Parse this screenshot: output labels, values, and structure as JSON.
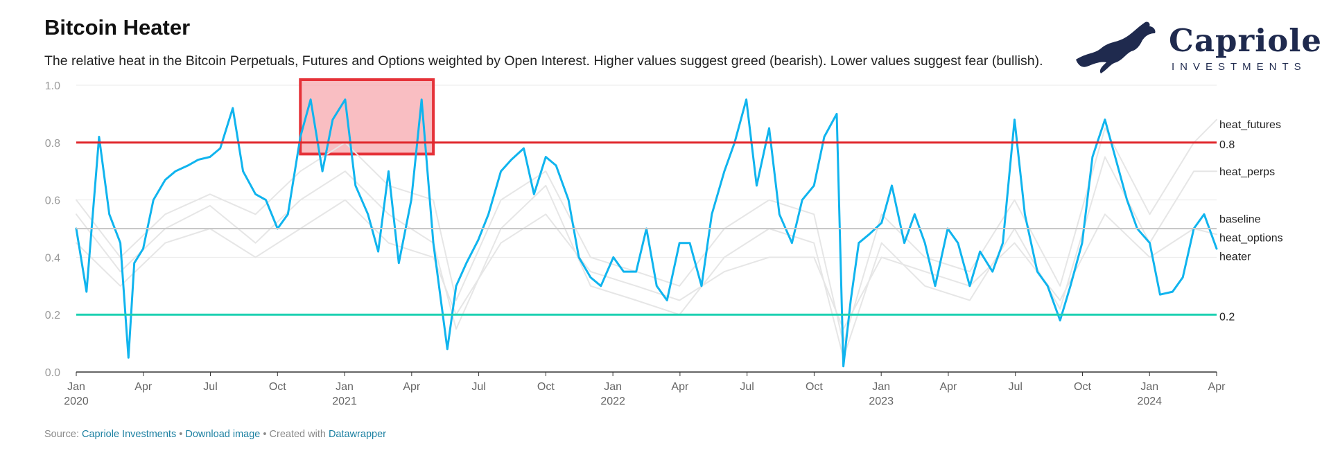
{
  "header": {
    "title": "Bitcoin Heater",
    "subtitle": "The relative heat in the Bitcoin Perpetuals, Futures and Options weighted by Open Interest. Higher values suggest greed (bearish). Lower values suggest fear (bullish)."
  },
  "logo": {
    "name": "Capriole",
    "tagline": "INVESTMENTS",
    "color": "#1f2a4e"
  },
  "footer": {
    "source_prefix": "Source:",
    "source_link": "Capriole Investments",
    "sep1": "•",
    "download_link": "Download image",
    "sep2": "•",
    "created_prefix": "Created with",
    "created_link": "Datawrapper"
  },
  "chart_data": {
    "type": "line",
    "x_range": [
      "2020-01-01",
      "2024-04-01"
    ],
    "ylim": [
      0,
      1
    ],
    "y_ticks": [
      "0.0",
      "0.2",
      "0.4",
      "0.6",
      "0.8",
      "1.0"
    ],
    "x_ticks": [
      {
        "month": "Jan",
        "year": "2020"
      },
      {
        "month": "Apr",
        "year": ""
      },
      {
        "month": "Jul",
        "year": ""
      },
      {
        "month": "Oct",
        "year": ""
      },
      {
        "month": "Jan",
        "year": "2021"
      },
      {
        "month": "Apr",
        "year": ""
      },
      {
        "month": "Jul",
        "year": ""
      },
      {
        "month": "Oct",
        "year": ""
      },
      {
        "month": "Jan",
        "year": "2022"
      },
      {
        "month": "Apr",
        "year": ""
      },
      {
        "month": "Jul",
        "year": ""
      },
      {
        "month": "Oct",
        "year": ""
      },
      {
        "month": "Jan",
        "year": "2023"
      },
      {
        "month": "Apr",
        "year": ""
      },
      {
        "month": "Jul",
        "year": ""
      },
      {
        "month": "Oct",
        "year": ""
      },
      {
        "month": "Jan",
        "year": "2024"
      },
      {
        "month": "Apr",
        "year": ""
      }
    ],
    "grid": true,
    "reference_lines": [
      {
        "label": "0.8",
        "value": 0.8,
        "color": "#e0262b"
      },
      {
        "label": "baseline",
        "value": 0.5,
        "color": "#c8c8c8"
      },
      {
        "label": "0.2",
        "value": 0.2,
        "color": "#1ed1b2"
      }
    ],
    "highlight": {
      "x_start": "2020-11-01",
      "x_end": "2021-05-01",
      "y_start": 0.76,
      "y_end": 1.0,
      "fill": "#f7a8ad",
      "stroke": "#e53138"
    },
    "series": [
      {
        "name": "heater",
        "color": "#10b4ee",
        "points": [
          [
            "2020-01-01",
            0.5
          ],
          [
            "2020-01-15",
            0.28
          ],
          [
            "2020-02-01",
            0.82
          ],
          [
            "2020-02-15",
            0.55
          ],
          [
            "2020-03-01",
            0.45
          ],
          [
            "2020-03-12",
            0.05
          ],
          [
            "2020-03-20",
            0.38
          ],
          [
            "2020-04-01",
            0.43
          ],
          [
            "2020-04-15",
            0.6
          ],
          [
            "2020-05-01",
            0.67
          ],
          [
            "2020-05-15",
            0.7
          ],
          [
            "2020-06-01",
            0.72
          ],
          [
            "2020-06-15",
            0.74
          ],
          [
            "2020-07-01",
            0.75
          ],
          [
            "2020-07-15",
            0.78
          ],
          [
            "2020-08-01",
            0.92
          ],
          [
            "2020-08-15",
            0.7
          ],
          [
            "2020-09-01",
            0.62
          ],
          [
            "2020-09-15",
            0.6
          ],
          [
            "2020-10-01",
            0.5
          ],
          [
            "2020-10-15",
            0.55
          ],
          [
            "2020-11-01",
            0.82
          ],
          [
            "2020-11-15",
            0.95
          ],
          [
            "2020-12-01",
            0.7
          ],
          [
            "2020-12-15",
            0.88
          ],
          [
            "2021-01-01",
            0.95
          ],
          [
            "2021-01-15",
            0.65
          ],
          [
            "2021-02-01",
            0.55
          ],
          [
            "2021-02-15",
            0.42
          ],
          [
            "2021-03-01",
            0.7
          ],
          [
            "2021-03-15",
            0.38
          ],
          [
            "2021-04-01",
            0.6
          ],
          [
            "2021-04-15",
            0.95
          ],
          [
            "2021-05-01",
            0.45
          ],
          [
            "2021-05-20",
            0.08
          ],
          [
            "2021-06-01",
            0.3
          ],
          [
            "2021-06-15",
            0.38
          ],
          [
            "2021-07-01",
            0.46
          ],
          [
            "2021-07-15",
            0.55
          ],
          [
            "2021-08-01",
            0.7
          ],
          [
            "2021-08-15",
            0.74
          ],
          [
            "2021-09-01",
            0.78
          ],
          [
            "2021-09-15",
            0.62
          ],
          [
            "2021-10-01",
            0.75
          ],
          [
            "2021-10-15",
            0.72
          ],
          [
            "2021-11-01",
            0.6
          ],
          [
            "2021-11-15",
            0.4
          ],
          [
            "2021-12-01",
            0.33
          ],
          [
            "2021-12-15",
            0.3
          ],
          [
            "2022-01-01",
            0.4
          ],
          [
            "2022-01-15",
            0.35
          ],
          [
            "2022-02-01",
            0.35
          ],
          [
            "2022-02-15",
            0.5
          ],
          [
            "2022-03-01",
            0.3
          ],
          [
            "2022-03-15",
            0.25
          ],
          [
            "2022-04-01",
            0.45
          ],
          [
            "2022-04-15",
            0.45
          ],
          [
            "2022-05-01",
            0.3
          ],
          [
            "2022-05-15",
            0.55
          ],
          [
            "2022-06-01",
            0.7
          ],
          [
            "2022-06-15",
            0.8
          ],
          [
            "2022-07-01",
            0.95
          ],
          [
            "2022-07-15",
            0.65
          ],
          [
            "2022-08-01",
            0.85
          ],
          [
            "2022-08-15",
            0.55
          ],
          [
            "2022-09-01",
            0.45
          ],
          [
            "2022-09-15",
            0.6
          ],
          [
            "2022-10-01",
            0.65
          ],
          [
            "2022-10-15",
            0.82
          ],
          [
            "2022-11-01",
            0.9
          ],
          [
            "2022-11-10",
            0.02
          ],
          [
            "2022-11-20",
            0.25
          ],
          [
            "2022-12-01",
            0.45
          ],
          [
            "2022-12-15",
            0.48
          ],
          [
            "2023-01-01",
            0.52
          ],
          [
            "2023-01-15",
            0.65
          ],
          [
            "2023-02-01",
            0.45
          ],
          [
            "2023-02-15",
            0.55
          ],
          [
            "2023-03-01",
            0.45
          ],
          [
            "2023-03-15",
            0.3
          ],
          [
            "2023-04-01",
            0.5
          ],
          [
            "2023-04-15",
            0.45
          ],
          [
            "2023-05-01",
            0.3
          ],
          [
            "2023-05-15",
            0.42
          ],
          [
            "2023-06-01",
            0.35
          ],
          [
            "2023-06-15",
            0.45
          ],
          [
            "2023-07-01",
            0.88
          ],
          [
            "2023-07-15",
            0.55
          ],
          [
            "2023-08-01",
            0.35
          ],
          [
            "2023-08-15",
            0.3
          ],
          [
            "2023-09-01",
            0.18
          ],
          [
            "2023-09-15",
            0.3
          ],
          [
            "2023-10-01",
            0.45
          ],
          [
            "2023-10-15",
            0.75
          ],
          [
            "2023-11-01",
            0.88
          ],
          [
            "2023-11-15",
            0.75
          ],
          [
            "2023-12-01",
            0.6
          ],
          [
            "2023-12-15",
            0.5
          ],
          [
            "2024-01-01",
            0.45
          ],
          [
            "2024-01-15",
            0.27
          ],
          [
            "2024-02-01",
            0.28
          ],
          [
            "2024-02-15",
            0.33
          ],
          [
            "2024-03-01",
            0.5
          ],
          [
            "2024-03-15",
            0.55
          ],
          [
            "2024-04-01",
            0.43
          ]
        ]
      },
      {
        "name": "heat_futures",
        "color": "#e6e6e6",
        "points": [
          [
            "2020-01-01",
            0.6
          ],
          [
            "2020-03-01",
            0.4
          ],
          [
            "2020-05-01",
            0.55
          ],
          [
            "2020-07-01",
            0.62
          ],
          [
            "2020-09-01",
            0.55
          ],
          [
            "2020-11-01",
            0.7
          ],
          [
            "2021-01-01",
            0.8
          ],
          [
            "2021-03-01",
            0.65
          ],
          [
            "2021-05-01",
            0.6
          ],
          [
            "2021-06-01",
            0.25
          ],
          [
            "2021-08-01",
            0.6
          ],
          [
            "2021-10-01",
            0.7
          ],
          [
            "2021-12-01",
            0.4
          ],
          [
            "2022-02-01",
            0.35
          ],
          [
            "2022-04-01",
            0.3
          ],
          [
            "2022-06-01",
            0.5
          ],
          [
            "2022-08-01",
            0.6
          ],
          [
            "2022-10-01",
            0.55
          ],
          [
            "2022-11-10",
            0.1
          ],
          [
            "2023-01-01",
            0.55
          ],
          [
            "2023-03-01",
            0.4
          ],
          [
            "2023-05-01",
            0.35
          ],
          [
            "2023-07-01",
            0.6
          ],
          [
            "2023-09-01",
            0.3
          ],
          [
            "2023-11-01",
            0.85
          ],
          [
            "2024-01-01",
            0.55
          ],
          [
            "2024-03-01",
            0.8
          ],
          [
            "2024-04-01",
            0.88
          ]
        ]
      },
      {
        "name": "heat_perps",
        "color": "#e6e6e6",
        "points": [
          [
            "2020-01-01",
            0.55
          ],
          [
            "2020-03-01",
            0.35
          ],
          [
            "2020-05-01",
            0.5
          ],
          [
            "2020-07-01",
            0.58
          ],
          [
            "2020-09-01",
            0.45
          ],
          [
            "2020-11-01",
            0.6
          ],
          [
            "2021-01-01",
            0.7
          ],
          [
            "2021-03-01",
            0.55
          ],
          [
            "2021-05-01",
            0.45
          ],
          [
            "2021-06-01",
            0.15
          ],
          [
            "2021-08-01",
            0.5
          ],
          [
            "2021-10-01",
            0.65
          ],
          [
            "2021-12-01",
            0.3
          ],
          [
            "2022-02-01",
            0.25
          ],
          [
            "2022-04-01",
            0.2
          ],
          [
            "2022-06-01",
            0.4
          ],
          [
            "2022-08-01",
            0.5
          ],
          [
            "2022-10-01",
            0.45
          ],
          [
            "2022-11-10",
            0.05
          ],
          [
            "2023-01-01",
            0.45
          ],
          [
            "2023-03-01",
            0.3
          ],
          [
            "2023-05-01",
            0.25
          ],
          [
            "2023-07-01",
            0.5
          ],
          [
            "2023-09-01",
            0.22
          ],
          [
            "2023-11-01",
            0.75
          ],
          [
            "2024-01-01",
            0.45
          ],
          [
            "2024-03-01",
            0.7
          ],
          [
            "2024-04-01",
            0.7
          ]
        ]
      },
      {
        "name": "heat_options",
        "color": "#e6e6e6",
        "points": [
          [
            "2020-01-01",
            0.45
          ],
          [
            "2020-03-01",
            0.3
          ],
          [
            "2020-05-01",
            0.45
          ],
          [
            "2020-07-01",
            0.5
          ],
          [
            "2020-09-01",
            0.4
          ],
          [
            "2020-11-01",
            0.5
          ],
          [
            "2021-01-01",
            0.6
          ],
          [
            "2021-03-01",
            0.45
          ],
          [
            "2021-05-01",
            0.4
          ],
          [
            "2021-06-01",
            0.2
          ],
          [
            "2021-08-01",
            0.45
          ],
          [
            "2021-10-01",
            0.55
          ],
          [
            "2021-12-01",
            0.35
          ],
          [
            "2022-02-01",
            0.3
          ],
          [
            "2022-04-01",
            0.25
          ],
          [
            "2022-06-01",
            0.35
          ],
          [
            "2022-08-01",
            0.4
          ],
          [
            "2022-10-01",
            0.4
          ],
          [
            "2022-11-10",
            0.15
          ],
          [
            "2023-01-01",
            0.4
          ],
          [
            "2023-03-01",
            0.35
          ],
          [
            "2023-05-01",
            0.3
          ],
          [
            "2023-07-01",
            0.45
          ],
          [
            "2023-09-01",
            0.25
          ],
          [
            "2023-11-01",
            0.55
          ],
          [
            "2024-01-01",
            0.4
          ],
          [
            "2024-03-01",
            0.5
          ],
          [
            "2024-04-01",
            0.48
          ]
        ]
      }
    ],
    "right_labels": [
      {
        "text": "heat_futures",
        "value": 0.865
      },
      {
        "text": "0.8",
        "value": 0.795
      },
      {
        "text": "heat_perps",
        "value": 0.7
      },
      {
        "text": "baseline",
        "value": 0.535
      },
      {
        "text": "heat_options",
        "value": 0.47
      },
      {
        "text": "heater",
        "value": 0.405
      },
      {
        "text": "0.2",
        "value": 0.195
      }
    ]
  }
}
